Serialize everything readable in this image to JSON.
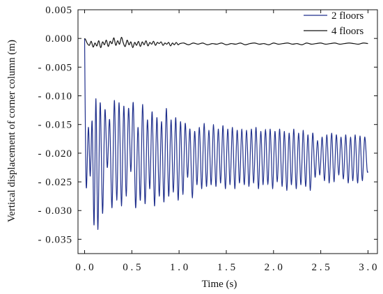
{
  "chart_data": {
    "type": "line",
    "title": "",
    "xlabel": "Time (s)",
    "ylabel": "Vertical displacement of corner column (m)",
    "xlim": [
      -0.07,
      3.1
    ],
    "ylim": [
      -0.0375,
      0.005
    ],
    "x_ticks": [
      0.0,
      0.5,
      1.0,
      1.5,
      2.0,
      2.5,
      3.0
    ],
    "x_tick_labels": [
      "0.0",
      "0.5",
      "1.0",
      "1.5",
      "2.0",
      "2.5",
      "3.0"
    ],
    "y_ticks": [
      0.005,
      0.0,
      -0.005,
      -0.01,
      -0.015,
      -0.02,
      -0.025,
      -0.03,
      -0.035
    ],
    "y_tick_labels": [
      "0.005",
      "0.000",
      "-0.005",
      "-0.010",
      "-0.015",
      "-0.020",
      "-0.025",
      "-0.030",
      "-0.035"
    ],
    "grid": false,
    "legend_position": "top-right",
    "series": [
      {
        "name": "2 floors",
        "color": "#1f2f8c",
        "x": [
          0.0,
          0.01,
          0.02,
          0.04,
          0.06,
          0.08,
          0.1,
          0.12,
          0.14,
          0.165,
          0.19,
          0.215,
          0.24,
          0.265,
          0.29,
          0.315,
          0.34,
          0.365,
          0.39,
          0.415,
          0.44,
          0.465,
          0.49,
          0.515,
          0.54,
          0.565,
          0.59,
          0.615,
          0.64,
          0.665,
          0.69,
          0.715,
          0.74,
          0.765,
          0.79,
          0.815,
          0.84,
          0.865,
          0.89,
          0.915,
          0.94,
          0.965,
          0.99,
          1.015,
          1.04,
          1.065,
          1.09,
          1.115,
          1.14,
          1.165,
          1.19,
          1.215,
          1.24,
          1.265,
          1.29,
          1.315,
          1.34,
          1.365,
          1.39,
          1.415,
          1.44,
          1.465,
          1.49,
          1.515,
          1.54,
          1.565,
          1.59,
          1.615,
          1.64,
          1.665,
          1.69,
          1.715,
          1.74,
          1.765,
          1.79,
          1.815,
          1.84,
          1.865,
          1.89,
          1.915,
          1.94,
          1.965,
          1.99,
          2.015,
          2.04,
          2.065,
          2.09,
          2.115,
          2.14,
          2.165,
          2.19,
          2.215,
          2.24,
          2.265,
          2.29,
          2.315,
          2.34,
          2.365,
          2.39,
          2.415,
          2.44,
          2.465,
          2.49,
          2.515,
          2.54,
          2.565,
          2.59,
          2.615,
          2.64,
          2.665,
          2.69,
          2.715,
          2.74,
          2.765,
          2.79,
          2.815,
          2.84,
          2.865,
          2.89,
          2.915,
          2.94,
          2.965,
          2.99,
          3.0
        ],
        "y": [
          0.0,
          -0.019,
          -0.026,
          -0.0155,
          -0.024,
          -0.0145,
          -0.0325,
          -0.0105,
          -0.0333,
          -0.0112,
          -0.0305,
          -0.0125,
          -0.0225,
          -0.0142,
          -0.0295,
          -0.0108,
          -0.0282,
          -0.0112,
          -0.0292,
          -0.0118,
          -0.0275,
          -0.0122,
          -0.0232,
          -0.0112,
          -0.0295,
          -0.0155,
          -0.0282,
          -0.0115,
          -0.0288,
          -0.0142,
          -0.0262,
          -0.0128,
          -0.0292,
          -0.0138,
          -0.0275,
          -0.0145,
          -0.0285,
          -0.0122,
          -0.0275,
          -0.0142,
          -0.0268,
          -0.0138,
          -0.0282,
          -0.0145,
          -0.0272,
          -0.0148,
          -0.0242,
          -0.0158,
          -0.0278,
          -0.0162,
          -0.0255,
          -0.0155,
          -0.0262,
          -0.0148,
          -0.0258,
          -0.016,
          -0.0255,
          -0.015,
          -0.0258,
          -0.0158,
          -0.0252,
          -0.0152,
          -0.0262,
          -0.0158,
          -0.0255,
          -0.0155,
          -0.0262,
          -0.016,
          -0.0252,
          -0.0158,
          -0.0255,
          -0.016,
          -0.0258,
          -0.0158,
          -0.0252,
          -0.0155,
          -0.0262,
          -0.0162,
          -0.0255,
          -0.0158,
          -0.0255,
          -0.0158,
          -0.0262,
          -0.0162,
          -0.025,
          -0.0158,
          -0.0258,
          -0.0162,
          -0.0265,
          -0.0165,
          -0.0255,
          -0.0158,
          -0.0262,
          -0.0165,
          -0.0255,
          -0.016,
          -0.0258,
          -0.0168,
          -0.0265,
          -0.0165,
          -0.0242,
          -0.0178,
          -0.0238,
          -0.0172,
          -0.0248,
          -0.0168,
          -0.0252,
          -0.0165,
          -0.025,
          -0.0168,
          -0.0238,
          -0.0172,
          -0.0245,
          -0.0168,
          -0.0252,
          -0.0172,
          -0.0248,
          -0.0168,
          -0.0252,
          -0.017,
          -0.0248,
          -0.0172,
          -0.0228,
          -0.0232
        ]
      },
      {
        "name": "4 floors",
        "color": "#111111",
        "x": [
          0.0,
          0.01,
          0.03,
          0.05,
          0.07,
          0.09,
          0.11,
          0.13,
          0.15,
          0.17,
          0.19,
          0.21,
          0.23,
          0.25,
          0.27,
          0.29,
          0.31,
          0.33,
          0.35,
          0.37,
          0.39,
          0.41,
          0.43,
          0.45,
          0.47,
          0.49,
          0.51,
          0.53,
          0.55,
          0.57,
          0.59,
          0.61,
          0.63,
          0.65,
          0.67,
          0.69,
          0.71,
          0.73,
          0.75,
          0.77,
          0.79,
          0.81,
          0.83,
          0.85,
          0.87,
          0.89,
          0.91,
          0.93,
          0.95,
          0.97,
          0.99,
          1.01,
          1.05,
          1.1,
          1.15,
          1.2,
          1.25,
          1.3,
          1.35,
          1.4,
          1.45,
          1.5,
          1.55,
          1.6,
          1.65,
          1.7,
          1.75,
          1.8,
          1.85,
          1.9,
          1.95,
          2.0,
          2.05,
          2.1,
          2.15,
          2.2,
          2.25,
          2.3,
          2.35,
          2.4,
          2.45,
          2.5,
          2.55,
          2.6,
          2.65,
          2.7,
          2.75,
          2.8,
          2.85,
          2.9,
          2.95,
          3.0
        ],
        "y": [
          0.0,
          -0.0002,
          -0.0009,
          -0.0012,
          -0.0005,
          -0.0015,
          -0.0008,
          -0.0013,
          -0.0004,
          -0.0016,
          -0.0006,
          -0.0011,
          -0.0003,
          -0.0014,
          -0.0005,
          -0.0009,
          0.0001,
          -0.0012,
          -0.0004,
          -0.001,
          0.0002,
          -0.0008,
          -0.0014,
          -0.0003,
          -0.0011,
          -0.0006,
          -0.0016,
          -0.0007,
          -0.0012,
          -0.0005,
          -0.0014,
          -0.0006,
          -0.0011,
          -0.0004,
          -0.0013,
          -0.0007,
          -0.001,
          -0.0005,
          -0.0012,
          -0.0007,
          -0.0009,
          -0.0006,
          -0.0012,
          -0.0008,
          -0.001,
          -0.0007,
          -0.0013,
          -0.0008,
          -0.0011,
          -0.0007,
          -0.0011,
          -0.0009,
          -0.0008,
          -0.0011,
          -0.0008,
          -0.001,
          -0.0008,
          -0.0011,
          -0.0009,
          -0.001,
          -0.0008,
          -0.0011,
          -0.0009,
          -0.001,
          -0.0008,
          -0.0011,
          -0.0009,
          -0.0008,
          -0.001,
          -0.0009,
          -0.0011,
          -0.0008,
          -0.001,
          -0.0009,
          -0.0008,
          -0.001,
          -0.0009,
          -0.0011,
          -0.0008,
          -0.001,
          -0.0009,
          -0.0008,
          -0.001,
          -0.0009,
          -0.0008,
          -0.001,
          -0.0009,
          -0.0008,
          -0.0009,
          -0.001,
          -0.0008,
          -0.0009
        ]
      }
    ]
  }
}
